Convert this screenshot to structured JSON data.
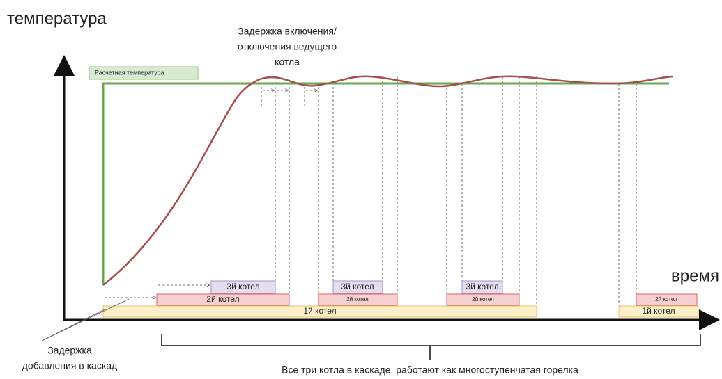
{
  "axes": {
    "y_label": "температура",
    "x_label": "время"
  },
  "legend": {
    "label": "Расчетная температура"
  },
  "annotations": {
    "delay_lead": [
      "Задержка включения/",
      "отключения ведущего",
      "котла"
    ],
    "delay_add": [
      "Задержка",
      "добавления в каскад"
    ],
    "cascade": "Все три котла в каскаде, работают как многоступенчатая горелка"
  },
  "bars": {
    "boiler1": [
      "1й котел",
      "1й котел"
    ],
    "boiler2": [
      "2й котел",
      "2й котел",
      "2й котел",
      "2й котел"
    ],
    "boiler3": [
      "3й котел",
      "3й котел",
      "3й котел"
    ]
  }
}
